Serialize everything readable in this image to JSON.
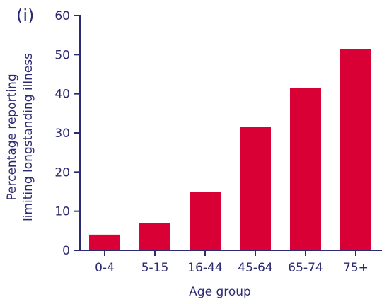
{
  "panel_label": "(i)",
  "colors": {
    "bar": "#d90036",
    "axis": "#2b2a72",
    "text": "#2b2a72"
  },
  "chart_data": {
    "type": "bar",
    "categories": [
      "0-4",
      "5-15",
      "16-44",
      "45-64",
      "65-74",
      "75+"
    ],
    "values": [
      4,
      7,
      15,
      31.5,
      41.5,
      51.5
    ],
    "title": "",
    "xlabel": "Age group",
    "ylabel": [
      "Percentage reporting",
      "limiting longstanding illness"
    ],
    "ylim": [
      0,
      60
    ],
    "yticks": [
      "0",
      "10",
      "20",
      "30",
      "40",
      "50",
      "60"
    ],
    "grid": false,
    "legend": "none"
  }
}
